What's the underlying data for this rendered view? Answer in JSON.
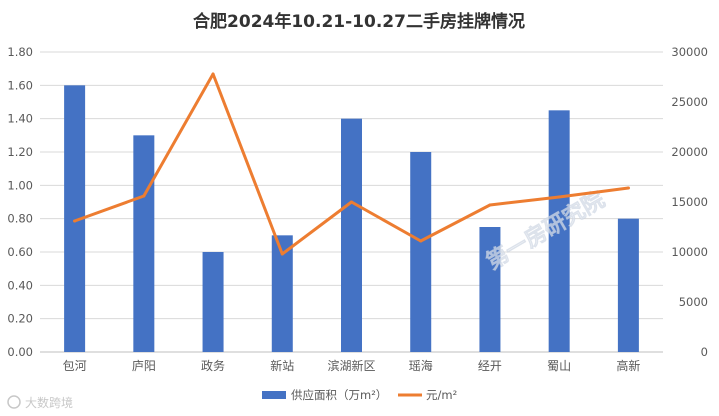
{
  "chart_data": {
    "type": "bar",
    "title": "合肥2024年10.21-10.27二手房挂牌情况",
    "categories": [
      "包河",
      "庐阳",
      "政务",
      "新站",
      "滨湖新区",
      "瑶海",
      "经开",
      "蜀山",
      "高新"
    ],
    "series": [
      {
        "name": "供应面积（万m²）",
        "type": "bar",
        "axis": "left",
        "color": "#4472C4",
        "values": [
          1.6,
          1.3,
          0.6,
          0.7,
          1.4,
          1.2,
          0.75,
          1.45,
          0.8
        ]
      },
      {
        "name": "元/m²",
        "type": "line",
        "axis": "right",
        "color": "#ED7D31",
        "values": [
          13100,
          15600,
          27800,
          9800,
          15000,
          11100,
          14700,
          15500,
          16400
        ]
      }
    ],
    "y_left": {
      "ylim": [
        0,
        1.8
      ],
      "ticks": [
        "0.00",
        "0.20",
        "0.40",
        "0.60",
        "0.80",
        "1.00",
        "1.20",
        "1.40",
        "1.60",
        "1.80"
      ]
    },
    "y_right": {
      "ylim": [
        0,
        30000
      ],
      "ticks": [
        "0",
        "5000",
        "10000",
        "15000",
        "20000",
        "25000",
        "30000"
      ]
    },
    "grid": true,
    "legend_position": "bottom"
  },
  "watermark": {
    "main": "第一房研究院",
    "corner": "大数跨境"
  }
}
